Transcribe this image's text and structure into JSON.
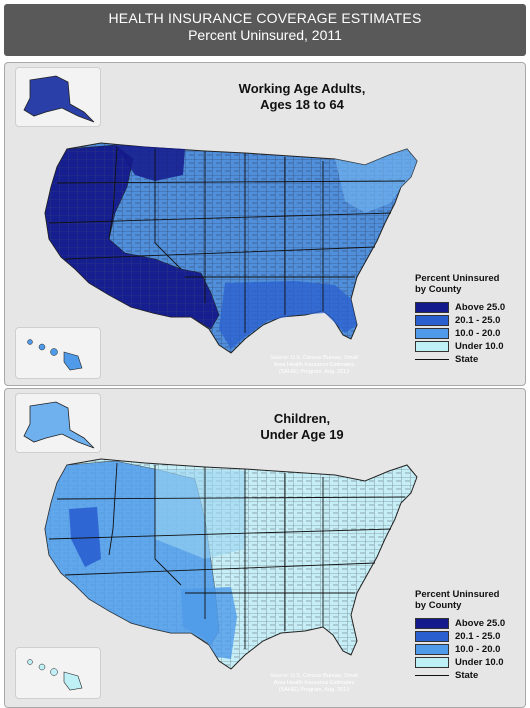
{
  "header": {
    "title": "HEALTH INSURANCE COVERAGE ESTIMATES",
    "subtitle": "Percent Uninsured, 2011"
  },
  "panels": [
    {
      "title_line1": "Working Age Adults,",
      "title_line2": "Ages 18 to 64",
      "legend_title_line1": "Percent Uninsured",
      "legend_title_line2": "by County",
      "legend_items": [
        {
          "label": "Above 25.0",
          "color": "#141a8c"
        },
        {
          "label": "20.1 - 25.0",
          "color": "#2a5fd0"
        },
        {
          "label": "10.0 - 20.0",
          "color": "#4f9bea"
        },
        {
          "label": "Under 10.0",
          "color": "#bff0f6"
        }
      ],
      "state_label": "State",
      "source_line1": "Source: U.S. Census Bureau, Small",
      "source_line2": "Area Health Insurance Estimates",
      "source_line3": "(SAHIE) Program, Aug. 2013"
    },
    {
      "title_line1": "Children,",
      "title_line2": "Under Age 19",
      "legend_title_line1": "Percent Uninsured",
      "legend_title_line2": "by County",
      "legend_items": [
        {
          "label": "Above 25.0",
          "color": "#141a8c"
        },
        {
          "label": "20.1 - 25.0",
          "color": "#2a5fd0"
        },
        {
          "label": "10.0 - 20.0",
          "color": "#4f9bea"
        },
        {
          "label": "Under 10.0",
          "color": "#bff0f6"
        }
      ],
      "state_label": "State",
      "source_line1": "Source: U.S. Census Bureau, Small",
      "source_line2": "Area Health Insurance Estimates",
      "source_line3": "(SAHIE) Program, Aug. 2013"
    }
  ]
}
